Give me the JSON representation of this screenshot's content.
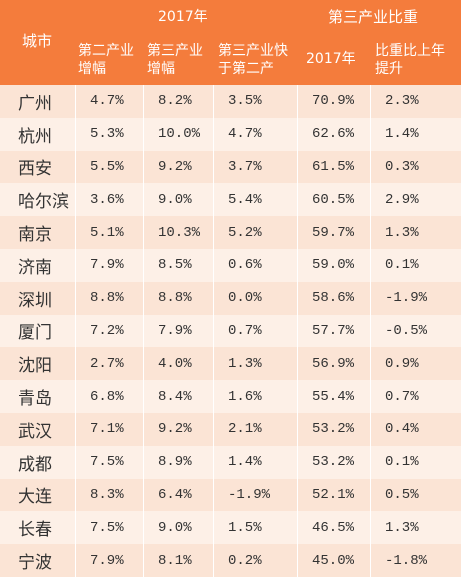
{
  "table": {
    "header": {
      "city": "城市",
      "group_2017": "2017年",
      "group_share": "第三产业比重",
      "columns": [
        "第二产业\n增幅",
        "第三产业\n增幅",
        "第三产业快\n于第二产",
        "2017年",
        "比重比上年\n提升"
      ]
    },
    "rows": [
      [
        "广州",
        "4.7%",
        "8.2%",
        "3.5%",
        "70.9%",
        "2.3%"
      ],
      [
        "杭州",
        "5.3%",
        "10.0%",
        "4.7%",
        "62.6%",
        "1.4%"
      ],
      [
        "西安",
        "5.5%",
        "9.2%",
        "3.7%",
        "61.5%",
        "0.3%"
      ],
      [
        "哈尔滨",
        "3.6%",
        "9.0%",
        "5.4%",
        "60.5%",
        "2.9%"
      ],
      [
        "南京",
        "5.1%",
        "10.3%",
        "5.2%",
        "59.7%",
        "1.3%"
      ],
      [
        "济南",
        "7.9%",
        "8.5%",
        "0.6%",
        "59.0%",
        "0.1%"
      ],
      [
        "深圳",
        "8.8%",
        "8.8%",
        "0.0%",
        "58.6%",
        "-1.9%"
      ],
      [
        "厦门",
        "7.2%",
        "7.9%",
        "0.7%",
        "57.7%",
        "-0.5%"
      ],
      [
        "沈阳",
        "2.7%",
        "4.0%",
        "1.3%",
        "56.9%",
        "0.9%"
      ],
      [
        "青岛",
        "6.8%",
        "8.4%",
        "1.6%",
        "55.4%",
        "0.7%"
      ],
      [
        "武汉",
        "7.1%",
        "9.2%",
        "2.1%",
        "53.2%",
        "0.4%"
      ],
      [
        "成都",
        "7.5%",
        "8.9%",
        "1.4%",
        "53.2%",
        "0.1%"
      ],
      [
        "大连",
        "8.3%",
        "6.4%",
        "-1.9%",
        "52.1%",
        "0.5%"
      ],
      [
        "长春",
        "7.5%",
        "9.0%",
        "1.5%",
        "46.5%",
        "1.3%"
      ],
      [
        "宁波",
        "7.9%",
        "8.1%",
        "0.2%",
        "45.0%",
        "-1.8%"
      ]
    ]
  }
}
